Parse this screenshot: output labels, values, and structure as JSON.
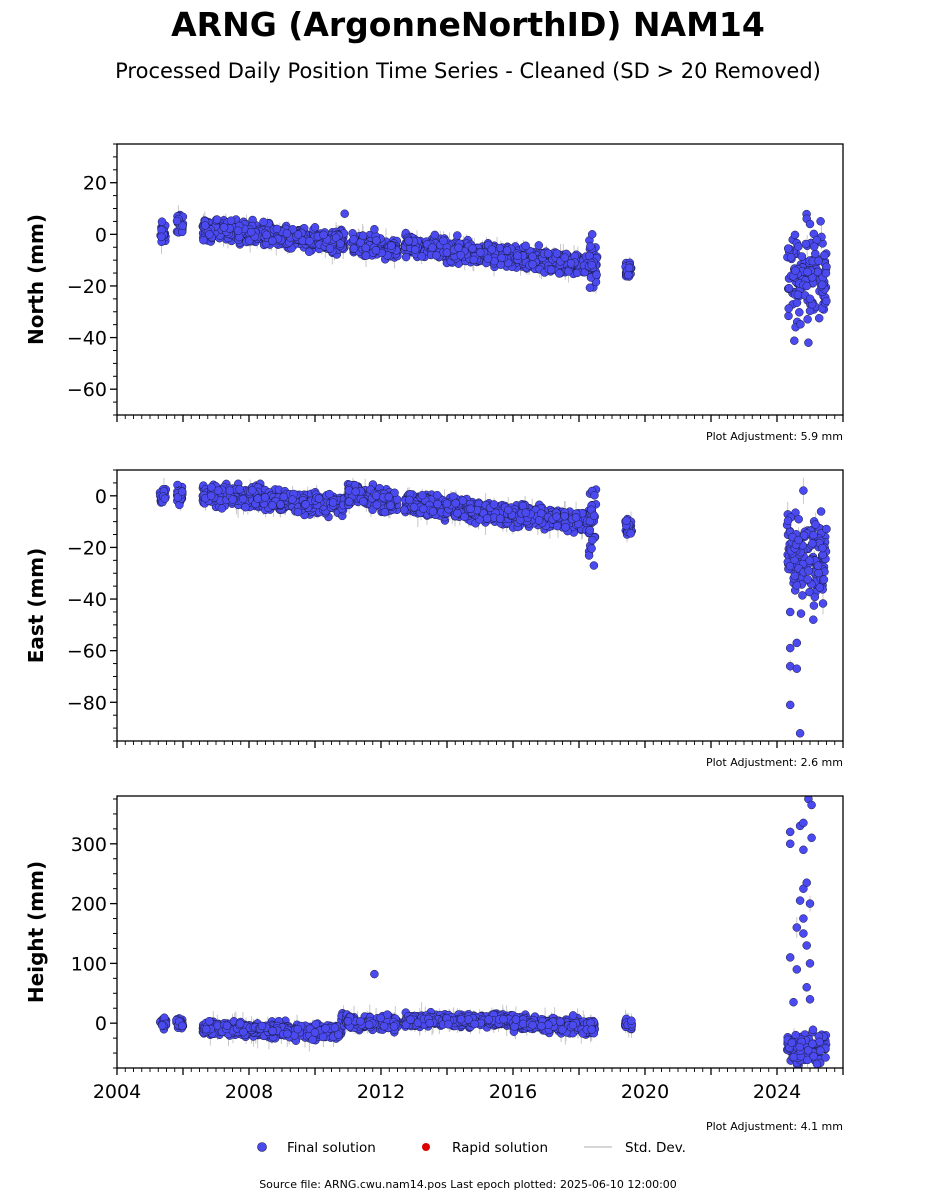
{
  "title": "ARNG (ArgonneNorthID) NAM14",
  "subtitle": "Processed Daily Position Time Series - Cleaned (SD > 20 Removed)",
  "footer": "Source file: ARNG.cwu.nam14.pos  Last epoch plotted: 2025-06-10 12:00:00",
  "legend": {
    "final": "Final solution",
    "rapid": "Rapid solution",
    "std": "Std. Dev."
  },
  "colors": {
    "final": "#4a4af0",
    "final_edge": "#1a1a40",
    "rapid": "#dd0000",
    "std": "#c8c8c8"
  },
  "chart_data": [
    {
      "type": "scatter",
      "ylabel": "North (mm)",
      "adjustment": "Plot Adjustment: 5.9 mm",
      "xlim": [
        2004.0,
        2026.0
      ],
      "ylim": [
        -70,
        35
      ],
      "yticks": [
        20,
        0,
        -20,
        -40,
        -60
      ],
      "ytick_labels": [
        "20",
        "0",
        "−20",
        "−40",
        "−60"
      ],
      "x_ticks_labeled": false,
      "segments": [
        {
          "x": [
            2005.3,
            2005.5
          ],
          "y": [
            0,
            1
          ],
          "spread": 2
        },
        {
          "x": [
            2005.8,
            2006.0
          ],
          "y": [
            4,
            4
          ],
          "spread": 2
        },
        {
          "x": [
            2006.6,
            2010.9
          ],
          "y": [
            2,
            -3
          ],
          "spread": 2
        },
        {
          "x": [
            2011.1,
            2012.5
          ],
          "y": [
            -4,
            -6
          ],
          "spread": 1.8
        },
        {
          "x": [
            2012.7,
            2018.3
          ],
          "y": [
            -4,
            -12
          ],
          "spread": 2
        },
        {
          "x": [
            2018.3,
            2018.55
          ],
          "y": [
            -12,
            -10
          ],
          "spread": 5
        },
        {
          "x": [
            2019.4,
            2019.6
          ],
          "y": [
            -14,
            -14
          ],
          "spread": 1.5
        },
        {
          "x": [
            2024.3,
            2025.5
          ],
          "y": [
            -18,
            -17
          ],
          "spread": 9
        }
      ],
      "outliers": [
        {
          "x": 2010.9,
          "y": 8
        },
        {
          "x": 2011.8,
          "y": 2
        },
        {
          "x": 2018.4,
          "y": 0
        },
        {
          "x": 2024.9,
          "y": 6
        },
        {
          "x": 2025.0,
          "y": 4
        },
        {
          "x": 2024.95,
          "y": -42
        }
      ]
    },
    {
      "type": "scatter",
      "ylabel": "East (mm)",
      "adjustment": "Plot Adjustment: 2.6 mm",
      "xlim": [
        2004.0,
        2026.0
      ],
      "ylim": [
        -95,
        10
      ],
      "yticks": [
        0,
        -20,
        -40,
        -60,
        -80
      ],
      "ytick_labels": [
        "0",
        "−20",
        "−40",
        "−60",
        "−80"
      ],
      "x_ticks_labeled": false,
      "segments": [
        {
          "x": [
            2005.3,
            2005.5
          ],
          "y": [
            0,
            0
          ],
          "spread": 2
        },
        {
          "x": [
            2005.8,
            2006.0
          ],
          "y": [
            1,
            1
          ],
          "spread": 2
        },
        {
          "x": [
            2006.6,
            2010.9
          ],
          "y": [
            1,
            -4
          ],
          "spread": 2
        },
        {
          "x": [
            2011.0,
            2012.5
          ],
          "y": [
            1,
            -3
          ],
          "spread": 2
        },
        {
          "x": [
            2012.7,
            2018.3
          ],
          "y": [
            -3,
            -10
          ],
          "spread": 2
        },
        {
          "x": [
            2018.3,
            2018.55
          ],
          "y": [
            -9,
            -6
          ],
          "spread": 6
        },
        {
          "x": [
            2019.4,
            2019.6
          ],
          "y": [
            -12,
            -12
          ],
          "spread": 1.5
        },
        {
          "x": [
            2024.3,
            2025.5
          ],
          "y": [
            -22,
            -24
          ],
          "spread": 8
        }
      ],
      "outliers": [
        {
          "x": 2018.45,
          "y": -27
        },
        {
          "x": 2024.4,
          "y": -81
        },
        {
          "x": 2024.7,
          "y": -92
        },
        {
          "x": 2024.4,
          "y": -66
        },
        {
          "x": 2024.6,
          "y": -67
        },
        {
          "x": 2024.6,
          "y": -57
        },
        {
          "x": 2024.4,
          "y": -59
        },
        {
          "x": 2024.8,
          "y": 2
        },
        {
          "x": 2025.1,
          "y": -48
        },
        {
          "x": 2024.4,
          "y": -45
        }
      ]
    },
    {
      "type": "scatter",
      "ylabel": "Height (mm)",
      "adjustment": "Plot Adjustment: 4.1 mm",
      "xlim": [
        2004.0,
        2026.0
      ],
      "ylim": [
        -75,
        380
      ],
      "yticks": [
        300,
        200,
        100,
        0
      ],
      "ytick_labels": [
        "300",
        "200",
        "100",
        "0"
      ],
      "x_ticks_labeled": true,
      "x_ticks": [
        2004,
        2008,
        2012,
        2016,
        2020,
        2024
      ],
      "x_tick_labels": [
        "2004",
        "2008",
        "2012",
        "2016",
        "2020",
        "2024"
      ],
      "segments": [
        {
          "x": [
            2005.3,
            2005.5
          ],
          "y": [
            0,
            0
          ],
          "spread": 5
        },
        {
          "x": [
            2005.8,
            2006.0
          ],
          "y": [
            0,
            0
          ],
          "spread": 4
        },
        {
          "x": [
            2006.6,
            2010.8
          ],
          "y": [
            -8,
            -15
          ],
          "spread": 6
        },
        {
          "x": [
            2010.8,
            2011.0
          ],
          "y": [
            8,
            8
          ],
          "spread": 5
        },
        {
          "x": [
            2011.0,
            2012.5
          ],
          "y": [
            0,
            0
          ],
          "spread": 5
        },
        {
          "x": [
            2012.7,
            2016.0
          ],
          "y": [
            5,
            5
          ],
          "spread": 5
        },
        {
          "x": [
            2016.0,
            2018.5
          ],
          "y": [
            0,
            -5
          ],
          "spread": 6
        },
        {
          "x": [
            2019.4,
            2019.6
          ],
          "y": [
            -3,
            -3
          ],
          "spread": 4
        },
        {
          "x": [
            2024.3,
            2025.5
          ],
          "y": [
            -40,
            -40
          ],
          "spread": 12
        }
      ],
      "outliers": [
        {
          "x": 2011.8,
          "y": 82
        },
        {
          "x": 2024.4,
          "y": 320
        },
        {
          "x": 2024.4,
          "y": 300
        },
        {
          "x": 2024.7,
          "y": 330
        },
        {
          "x": 2024.8,
          "y": 335
        },
        {
          "x": 2024.8,
          "y": 290
        },
        {
          "x": 2024.95,
          "y": 375
        },
        {
          "x": 2025.05,
          "y": 365
        },
        {
          "x": 2025.05,
          "y": 310
        },
        {
          "x": 2024.8,
          "y": 225
        },
        {
          "x": 2024.9,
          "y": 235
        },
        {
          "x": 2024.7,
          "y": 205
        },
        {
          "x": 2025.0,
          "y": 200
        },
        {
          "x": 2024.6,
          "y": 160
        },
        {
          "x": 2024.8,
          "y": 150
        },
        {
          "x": 2024.4,
          "y": 110
        },
        {
          "x": 2024.6,
          "y": 90
        },
        {
          "x": 2024.8,
          "y": 175
        },
        {
          "x": 2024.9,
          "y": 130
        },
        {
          "x": 2025.0,
          "y": 100
        },
        {
          "x": 2024.5,
          "y": 35
        },
        {
          "x": 2024.9,
          "y": 60
        },
        {
          "x": 2025.0,
          "y": 40
        }
      ]
    }
  ]
}
